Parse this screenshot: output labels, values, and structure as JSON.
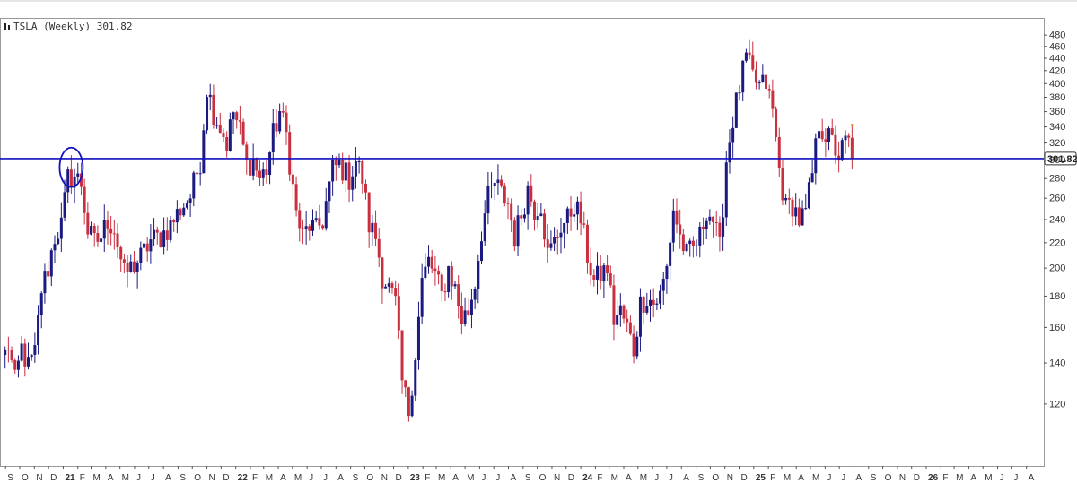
{
  "colors": {
    "up": "#1a1a80",
    "down": "#c83040",
    "last_candle": "#e08a20",
    "resistance_line": "#1010c0",
    "circle": "#1010c0",
    "axis_text": "#333333",
    "grid": "#999999"
  },
  "chart_data": {
    "type": "candlestick",
    "title": "TSLA (Weekly) 301.82",
    "y_scale": "log",
    "ylim": [
      100,
      495
    ],
    "yticks": [
      120,
      140,
      160,
      180,
      200,
      220,
      240,
      260,
      280,
      300,
      320,
      340,
      360,
      380,
      400,
      420,
      440,
      460,
      480
    ],
    "horizontal_line": {
      "value": 301.82,
      "label": "301.82"
    },
    "circle_annotation": {
      "date": "2021-01-18",
      "value": 292
    },
    "x_start": "2020-08-24",
    "x_end": "2026-09-01",
    "x_ticks": [
      {
        "date": "2020-09-01",
        "label": "S"
      },
      {
        "date": "2020-10-01",
        "label": "O"
      },
      {
        "date": "2020-11-01",
        "label": "N"
      },
      {
        "date": "2020-12-01",
        "label": "D"
      },
      {
        "date": "2021-01-01",
        "label": "21",
        "bold": true
      },
      {
        "date": "2021-02-01",
        "label": "F"
      },
      {
        "date": "2021-03-01",
        "label": "M"
      },
      {
        "date": "2021-04-01",
        "label": "A"
      },
      {
        "date": "2021-05-01",
        "label": "M"
      },
      {
        "date": "2021-06-01",
        "label": "J"
      },
      {
        "date": "2021-07-01",
        "label": "J"
      },
      {
        "date": "2021-08-01",
        "label": "A"
      },
      {
        "date": "2021-09-01",
        "label": "S"
      },
      {
        "date": "2021-10-01",
        "label": "O"
      },
      {
        "date": "2021-11-01",
        "label": "N"
      },
      {
        "date": "2021-12-01",
        "label": "D"
      },
      {
        "date": "2022-01-01",
        "label": "22",
        "bold": true
      },
      {
        "date": "2022-02-01",
        "label": "F"
      },
      {
        "date": "2022-03-01",
        "label": "M"
      },
      {
        "date": "2022-04-01",
        "label": "A"
      },
      {
        "date": "2022-05-01",
        "label": "M"
      },
      {
        "date": "2022-06-01",
        "label": "J"
      },
      {
        "date": "2022-07-01",
        "label": "J"
      },
      {
        "date": "2022-08-01",
        "label": "A"
      },
      {
        "date": "2022-09-01",
        "label": "S"
      },
      {
        "date": "2022-10-01",
        "label": "O"
      },
      {
        "date": "2022-11-01",
        "label": "N"
      },
      {
        "date": "2022-12-01",
        "label": "D"
      },
      {
        "date": "2023-01-01",
        "label": "23",
        "bold": true
      },
      {
        "date": "2023-02-01",
        "label": "F"
      },
      {
        "date": "2023-03-01",
        "label": "M"
      },
      {
        "date": "2023-04-01",
        "label": "A"
      },
      {
        "date": "2023-05-01",
        "label": "M"
      },
      {
        "date": "2023-06-01",
        "label": "J"
      },
      {
        "date": "2023-07-01",
        "label": "J"
      },
      {
        "date": "2023-08-01",
        "label": "A"
      },
      {
        "date": "2023-09-01",
        "label": "S"
      },
      {
        "date": "2023-10-01",
        "label": "O"
      },
      {
        "date": "2023-11-01",
        "label": "N"
      },
      {
        "date": "2023-12-01",
        "label": "D"
      },
      {
        "date": "2024-01-01",
        "label": "24",
        "bold": true
      },
      {
        "date": "2024-02-01",
        "label": "F"
      },
      {
        "date": "2024-03-01",
        "label": "M"
      },
      {
        "date": "2024-04-01",
        "label": "A"
      },
      {
        "date": "2024-05-01",
        "label": "M"
      },
      {
        "date": "2024-06-01",
        "label": "J"
      },
      {
        "date": "2024-07-01",
        "label": "J"
      },
      {
        "date": "2024-08-01",
        "label": "A"
      },
      {
        "date": "2024-09-01",
        "label": "S"
      },
      {
        "date": "2024-10-01",
        "label": "O"
      },
      {
        "date": "2024-11-01",
        "label": "N"
      },
      {
        "date": "2024-12-01",
        "label": "D"
      },
      {
        "date": "2025-01-01",
        "label": "25",
        "bold": true
      },
      {
        "date": "2025-02-01",
        "label": "F"
      },
      {
        "date": "2025-03-01",
        "label": "M"
      },
      {
        "date": "2025-04-01",
        "label": "A"
      },
      {
        "date": "2025-05-01",
        "label": "M"
      },
      {
        "date": "2025-06-01",
        "label": "J"
      },
      {
        "date": "2025-07-01",
        "label": "J"
      },
      {
        "date": "2025-08-01",
        "label": "A"
      },
      {
        "date": "2025-09-01",
        "label": "S"
      },
      {
        "date": "2025-10-01",
        "label": "O"
      },
      {
        "date": "2025-11-01",
        "label": "N"
      },
      {
        "date": "2025-12-01",
        "label": "D"
      },
      {
        "date": "2026-01-01",
        "label": "26",
        "bold": true
      },
      {
        "date": "2026-02-01",
        "label": "F"
      },
      {
        "date": "2026-03-01",
        "label": "M"
      },
      {
        "date": "2026-04-01",
        "label": "A"
      },
      {
        "date": "2026-05-01",
        "label": "M"
      },
      {
        "date": "2026-06-01",
        "label": "J"
      },
      {
        "date": "2026-07-01",
        "label": "J"
      },
      {
        "date": "2026-08-01",
        "label": "A"
      }
    ],
    "anchors": [
      [
        "2020-08-31",
        145
      ],
      [
        "2020-09-07",
        150
      ],
      [
        "2020-09-21",
        130
      ],
      [
        "2020-10-05",
        148
      ],
      [
        "2020-10-19",
        138
      ],
      [
        "2020-11-02",
        145
      ],
      [
        "2020-11-16",
        185
      ],
      [
        "2020-11-30",
        200
      ],
      [
        "2020-12-14",
        225
      ],
      [
        "2020-12-28",
        235
      ],
      [
        "2021-01-11",
        280
      ],
      [
        "2021-01-25",
        283
      ],
      [
        "2021-02-08",
        275
      ],
      [
        "2021-02-22",
        230
      ],
      [
        "2021-03-08",
        220
      ],
      [
        "2021-03-22",
        225
      ],
      [
        "2021-04-05",
        240
      ],
      [
        "2021-04-19",
        232
      ],
      [
        "2021-05-10",
        195
      ],
      [
        "2021-05-24",
        200
      ],
      [
        "2021-06-14",
        208
      ],
      [
        "2021-07-05",
        222
      ],
      [
        "2021-07-26",
        225
      ],
      [
        "2021-08-16",
        235
      ],
      [
        "2021-09-06",
        250
      ],
      [
        "2021-09-27",
        262
      ],
      [
        "2021-10-18",
        300
      ],
      [
        "2021-11-01",
        395
      ],
      [
        "2021-11-15",
        360
      ],
      [
        "2021-11-29",
        340
      ],
      [
        "2021-12-13",
        320
      ],
      [
        "2021-12-27",
        360
      ],
      [
        "2022-01-10",
        335
      ],
      [
        "2022-01-24",
        295
      ],
      [
        "2022-02-07",
        300
      ],
      [
        "2022-02-21",
        280
      ],
      [
        "2022-03-07",
        290
      ],
      [
        "2022-03-21",
        330
      ],
      [
        "2022-04-04",
        360
      ],
      [
        "2022-04-18",
        330
      ],
      [
        "2022-05-09",
        245
      ],
      [
        "2022-05-23",
        225
      ],
      [
        "2022-06-06",
        235
      ],
      [
        "2022-06-20",
        230
      ],
      [
        "2022-07-04",
        240
      ],
      [
        "2022-07-25",
        290
      ],
      [
        "2022-08-08",
        295
      ],
      [
        "2022-08-29",
        280
      ],
      [
        "2022-09-12",
        300
      ],
      [
        "2022-09-26",
        280
      ],
      [
        "2022-10-10",
        235
      ],
      [
        "2022-10-24",
        225
      ],
      [
        "2022-11-07",
        195
      ],
      [
        "2022-11-21",
        185
      ],
      [
        "2022-12-05",
        175
      ],
      [
        "2022-12-19",
        130
      ],
      [
        "2023-01-02",
        117
      ],
      [
        "2023-01-16",
        145
      ],
      [
        "2023-01-30",
        190
      ],
      [
        "2023-02-13",
        205
      ],
      [
        "2023-02-27",
        195
      ],
      [
        "2023-03-13",
        180
      ],
      [
        "2023-03-27",
        200
      ],
      [
        "2023-04-10",
        185
      ],
      [
        "2023-04-24",
        165
      ],
      [
        "2023-05-08",
        170
      ],
      [
        "2023-05-22",
        190
      ],
      [
        "2023-06-05",
        230
      ],
      [
        "2023-06-19",
        260
      ],
      [
        "2023-07-03",
        275
      ],
      [
        "2023-07-17",
        265
      ],
      [
        "2023-07-31",
        255
      ],
      [
        "2023-08-14",
        225
      ],
      [
        "2023-08-28",
        245
      ],
      [
        "2023-09-11",
        270
      ],
      [
        "2023-09-25",
        250
      ],
      [
        "2023-10-09",
        255
      ],
      [
        "2023-10-23",
        210
      ],
      [
        "2023-11-06",
        220
      ],
      [
        "2023-11-20",
        235
      ],
      [
        "2023-12-04",
        240
      ],
      [
        "2023-12-18",
        255
      ],
      [
        "2024-01-01",
        240
      ],
      [
        "2024-01-15",
        210
      ],
      [
        "2024-01-29",
        190
      ],
      [
        "2024-02-12",
        195
      ],
      [
        "2024-02-26",
        200
      ],
      [
        "2024-03-11",
        165
      ],
      [
        "2024-03-25",
        170
      ],
      [
        "2024-04-08",
        160
      ],
      [
        "2024-04-22",
        147
      ],
      [
        "2024-05-06",
        175
      ],
      [
        "2024-05-20",
        180
      ],
      [
        "2024-06-03",
        175
      ],
      [
        "2024-06-17",
        180
      ],
      [
        "2024-07-01",
        200
      ],
      [
        "2024-07-15",
        250
      ],
      [
        "2024-07-29",
        225
      ],
      [
        "2024-08-12",
        210
      ],
      [
        "2024-08-26",
        215
      ],
      [
        "2024-09-09",
        225
      ],
      [
        "2024-09-23",
        250
      ],
      [
        "2024-10-07",
        240
      ],
      [
        "2024-10-21",
        215
      ],
      [
        "2024-11-04",
        300
      ],
      [
        "2024-11-18",
        350
      ],
      [
        "2024-12-02",
        395
      ],
      [
        "2024-12-16",
        440
      ],
      [
        "2024-12-30",
        410
      ],
      [
        "2025-01-13",
        395
      ],
      [
        "2025-01-27",
        400
      ],
      [
        "2025-02-10",
        360
      ],
      [
        "2025-02-24",
        290
      ],
      [
        "2025-03-10",
        250
      ],
      [
        "2025-03-24",
        255
      ],
      [
        "2025-04-07",
        240
      ],
      [
        "2025-04-21",
        245
      ],
      [
        "2025-05-05",
        285
      ],
      [
        "2025-05-19",
        345
      ],
      [
        "2025-06-02",
        330
      ],
      [
        "2025-06-16",
        320
      ],
      [
        "2025-06-30",
        305
      ],
      [
        "2025-07-14",
        320
      ],
      [
        "2025-07-28",
        320
      ]
    ]
  }
}
